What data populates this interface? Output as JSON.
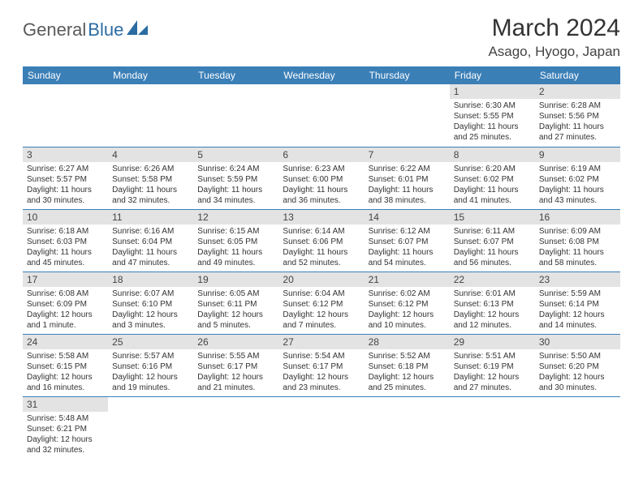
{
  "brand": {
    "part1": "General",
    "part2": "Blue"
  },
  "title": "March 2024",
  "location": "Asago, Hyogo, Japan",
  "colors": {
    "header_bg": "#3b7fb7",
    "daynum_bg": "#e3e3e3",
    "border": "#3b7fb7",
    "brand_gray": "#5a5a5a",
    "brand_blue": "#2b6ca3"
  },
  "day_headers": [
    "Sunday",
    "Monday",
    "Tuesday",
    "Wednesday",
    "Thursday",
    "Friday",
    "Saturday"
  ],
  "weeks": [
    [
      null,
      null,
      null,
      null,
      null,
      {
        "n": "1",
        "sr": "6:30 AM",
        "ss": "5:55 PM",
        "dl": "11 hours and 25 minutes."
      },
      {
        "n": "2",
        "sr": "6:28 AM",
        "ss": "5:56 PM",
        "dl": "11 hours and 27 minutes."
      }
    ],
    [
      {
        "n": "3",
        "sr": "6:27 AM",
        "ss": "5:57 PM",
        "dl": "11 hours and 30 minutes."
      },
      {
        "n": "4",
        "sr": "6:26 AM",
        "ss": "5:58 PM",
        "dl": "11 hours and 32 minutes."
      },
      {
        "n": "5",
        "sr": "6:24 AM",
        "ss": "5:59 PM",
        "dl": "11 hours and 34 minutes."
      },
      {
        "n": "6",
        "sr": "6:23 AM",
        "ss": "6:00 PM",
        "dl": "11 hours and 36 minutes."
      },
      {
        "n": "7",
        "sr": "6:22 AM",
        "ss": "6:01 PM",
        "dl": "11 hours and 38 minutes."
      },
      {
        "n": "8",
        "sr": "6:20 AM",
        "ss": "6:02 PM",
        "dl": "11 hours and 41 minutes."
      },
      {
        "n": "9",
        "sr": "6:19 AM",
        "ss": "6:02 PM",
        "dl": "11 hours and 43 minutes."
      }
    ],
    [
      {
        "n": "10",
        "sr": "6:18 AM",
        "ss": "6:03 PM",
        "dl": "11 hours and 45 minutes."
      },
      {
        "n": "11",
        "sr": "6:16 AM",
        "ss": "6:04 PM",
        "dl": "11 hours and 47 minutes."
      },
      {
        "n": "12",
        "sr": "6:15 AM",
        "ss": "6:05 PM",
        "dl": "11 hours and 49 minutes."
      },
      {
        "n": "13",
        "sr": "6:14 AM",
        "ss": "6:06 PM",
        "dl": "11 hours and 52 minutes."
      },
      {
        "n": "14",
        "sr": "6:12 AM",
        "ss": "6:07 PM",
        "dl": "11 hours and 54 minutes."
      },
      {
        "n": "15",
        "sr": "6:11 AM",
        "ss": "6:07 PM",
        "dl": "11 hours and 56 minutes."
      },
      {
        "n": "16",
        "sr": "6:09 AM",
        "ss": "6:08 PM",
        "dl": "11 hours and 58 minutes."
      }
    ],
    [
      {
        "n": "17",
        "sr": "6:08 AM",
        "ss": "6:09 PM",
        "dl": "12 hours and 1 minute."
      },
      {
        "n": "18",
        "sr": "6:07 AM",
        "ss": "6:10 PM",
        "dl": "12 hours and 3 minutes."
      },
      {
        "n": "19",
        "sr": "6:05 AM",
        "ss": "6:11 PM",
        "dl": "12 hours and 5 minutes."
      },
      {
        "n": "20",
        "sr": "6:04 AM",
        "ss": "6:12 PM",
        "dl": "12 hours and 7 minutes."
      },
      {
        "n": "21",
        "sr": "6:02 AM",
        "ss": "6:12 PM",
        "dl": "12 hours and 10 minutes."
      },
      {
        "n": "22",
        "sr": "6:01 AM",
        "ss": "6:13 PM",
        "dl": "12 hours and 12 minutes."
      },
      {
        "n": "23",
        "sr": "5:59 AM",
        "ss": "6:14 PM",
        "dl": "12 hours and 14 minutes."
      }
    ],
    [
      {
        "n": "24",
        "sr": "5:58 AM",
        "ss": "6:15 PM",
        "dl": "12 hours and 16 minutes."
      },
      {
        "n": "25",
        "sr": "5:57 AM",
        "ss": "6:16 PM",
        "dl": "12 hours and 19 minutes."
      },
      {
        "n": "26",
        "sr": "5:55 AM",
        "ss": "6:17 PM",
        "dl": "12 hours and 21 minutes."
      },
      {
        "n": "27",
        "sr": "5:54 AM",
        "ss": "6:17 PM",
        "dl": "12 hours and 23 minutes."
      },
      {
        "n": "28",
        "sr": "5:52 AM",
        "ss": "6:18 PM",
        "dl": "12 hours and 25 minutes."
      },
      {
        "n": "29",
        "sr": "5:51 AM",
        "ss": "6:19 PM",
        "dl": "12 hours and 27 minutes."
      },
      {
        "n": "30",
        "sr": "5:50 AM",
        "ss": "6:20 PM",
        "dl": "12 hours and 30 minutes."
      }
    ],
    [
      {
        "n": "31",
        "sr": "5:48 AM",
        "ss": "6:21 PM",
        "dl": "12 hours and 32 minutes."
      },
      null,
      null,
      null,
      null,
      null,
      null
    ]
  ],
  "labels": {
    "sunrise": "Sunrise: ",
    "sunset": "Sunset: ",
    "daylight": "Daylight: "
  }
}
